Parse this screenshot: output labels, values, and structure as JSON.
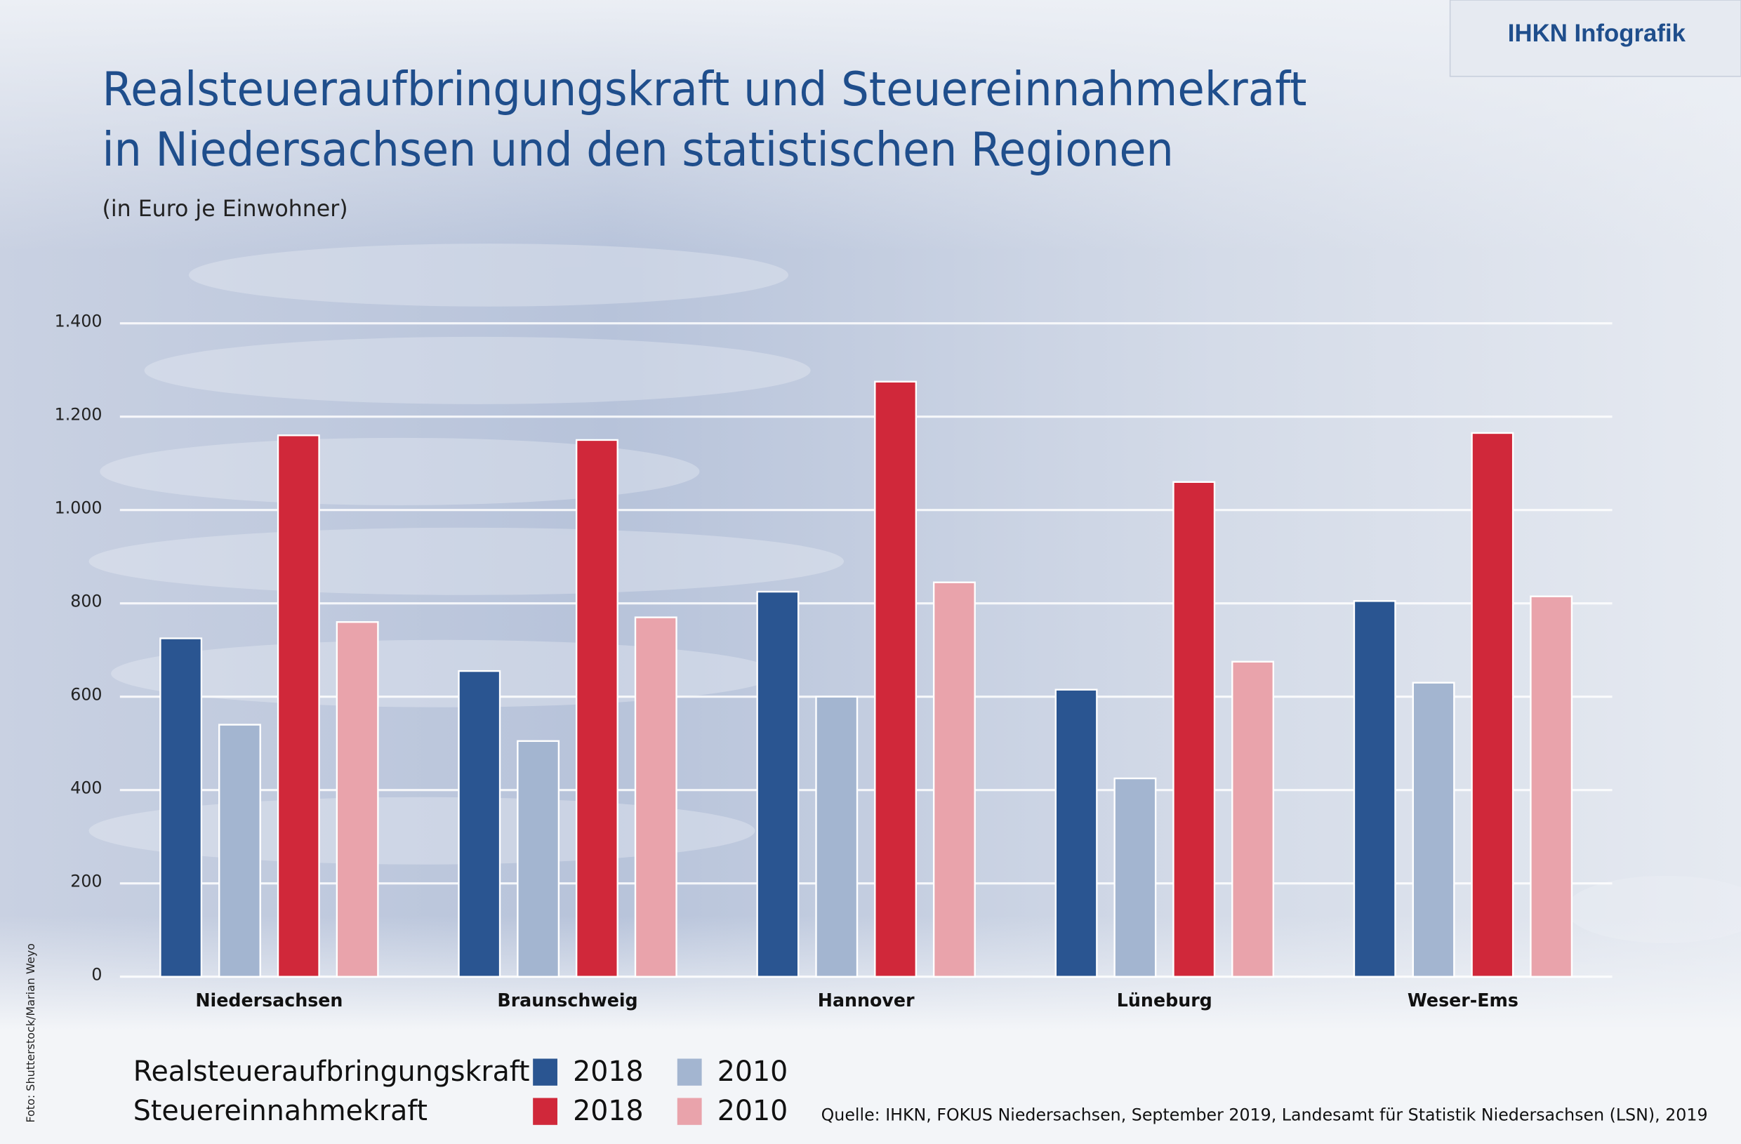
{
  "badge": "IHKN Infografik",
  "chart_data": {
    "type": "bar",
    "title": [
      "Realsteueraufbringungskraft und Steuereinnahmekraft",
      "in Niedersachsen und den statistischen Regionen"
    ],
    "subtitle": "(in Euro je Einwohner)",
    "categories": [
      "Niedersachsen",
      "Braunschweig",
      "Hannover",
      "Lüneburg",
      "Weser-Ems"
    ],
    "series": [
      {
        "name": "2018",
        "group": "Realsteueraufbringungskraft",
        "color": "#2a5591",
        "values": [
          725,
          655,
          825,
          615,
          805
        ]
      },
      {
        "name": "2010",
        "group": "Realsteueraufbringungskraft",
        "color": "#a3b5d0",
        "values": [
          540,
          505,
          600,
          425,
          630
        ]
      },
      {
        "name": "2018",
        "group": "Steuereinnahmekraft",
        "color": "#d0283a",
        "values": [
          1160,
          1150,
          1275,
          1060,
          1165
        ]
      },
      {
        "name": "2010",
        "group": "Steuereinnahmekraft",
        "color": "#e9a3ab",
        "values": [
          760,
          770,
          845,
          675,
          815
        ]
      }
    ],
    "ylim": [
      0,
      1400
    ],
    "yticks": [
      0,
      200,
      400,
      600,
      800,
      {
        "value": 1000,
        "label": "1.000"
      },
      {
        "value": 1200,
        "label": "1.200"
      },
      {
        "value": 1400,
        "label": "1.400"
      }
    ],
    "grid": true,
    "source": "Quelle: IHKN, FOKUS Niedersachsen, September 2019, Landesamt für Statistik Niedersachsen (LSN), 2019",
    "photo_credit": "Foto: Shutterstock/Marian Weyo"
  }
}
